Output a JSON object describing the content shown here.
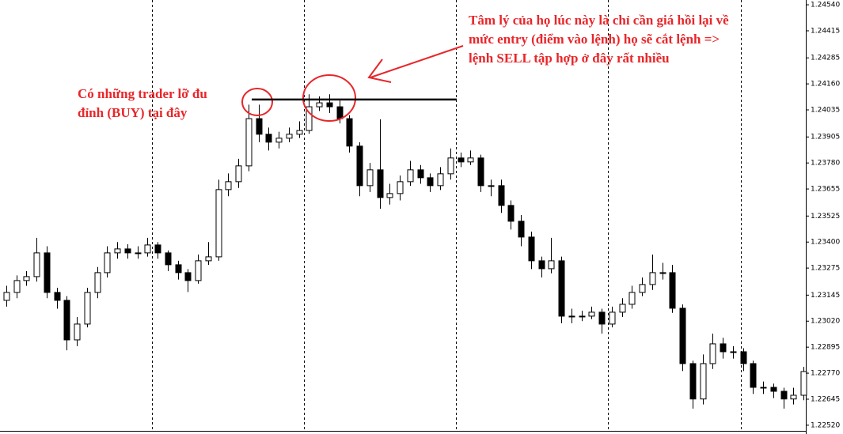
{
  "chart_data": {
    "type": "candlestick",
    "annotations": [
      "Tâm lý của họ lúc này là chỉ cần giá hồi lại về",
      "mức entry (điểm vào lệnh) họ sẽ cắt lệnh =>",
      "lệnh SELL tập hợp ở đây rất nhiều",
      "Có những trader lỡ đu",
      "đỉnh (BUY) tại đây"
    ],
    "level": 1.24085,
    "ylim": [
      1.22493,
      1.24563
    ],
    "yticks": [
      {
        "value": 1.2454,
        "label": "1.24540"
      },
      {
        "value": 1.24415,
        "label": "1.24415"
      },
      {
        "value": 1.24285,
        "label": "1.24285"
      },
      {
        "value": 1.2416,
        "label": "1.24160"
      },
      {
        "value": 1.24035,
        "label": "1.24035"
      },
      {
        "value": 1.23905,
        "label": "1.23905"
      },
      {
        "value": 1.2378,
        "label": "1.23780"
      },
      {
        "value": 1.23655,
        "label": "1.23655"
      },
      {
        "value": 1.23525,
        "label": "1.23525"
      },
      {
        "value": 1.234,
        "label": "1.23400"
      },
      {
        "value": 1.23275,
        "label": "1.23275"
      },
      {
        "value": 1.23145,
        "label": "1.23145"
      },
      {
        "value": 1.2302,
        "label": "1.23020"
      },
      {
        "value": 1.22895,
        "label": "1.22895"
      },
      {
        "value": 1.2277,
        "label": "1.22770"
      },
      {
        "value": 1.22645,
        "label": "1.22645"
      },
      {
        "value": 1.2252,
        "label": "1.22520"
      }
    ],
    "up_color": "#ffffff",
    "down_color": "#000000",
    "candles": [
      [
        1.2312,
        1.2319,
        1.2309,
        1.23158
      ],
      [
        1.23158,
        1.2324,
        1.2313,
        1.23215
      ],
      [
        1.23215,
        1.2326,
        1.2319,
        1.23234
      ],
      [
        1.23234,
        1.2342,
        1.2321,
        1.23348
      ],
      [
        1.23348,
        1.2338,
        1.2313,
        1.23158
      ],
      [
        1.23158,
        1.2318,
        1.2308,
        1.2312
      ],
      [
        1.2312,
        1.2314,
        1.2288,
        1.2293
      ],
      [
        1.2293,
        1.2304,
        1.229,
        1.23006
      ],
      [
        1.23006,
        1.2318,
        1.2299,
        1.23158
      ],
      [
        1.23158,
        1.2328,
        1.2313,
        1.23253
      ],
      [
        1.23253,
        1.2338,
        1.2323,
        1.23348
      ],
      [
        1.23348,
        1.234,
        1.2332,
        1.23367
      ],
      [
        1.23367,
        1.2339,
        1.2332,
        1.23348
      ],
      [
        1.23348,
        1.2338,
        1.2332,
        1.23348
      ],
      [
        1.23348,
        1.2342,
        1.2333,
        1.23386
      ],
      [
        1.23386,
        1.234,
        1.2332,
        1.23348
      ],
      [
        1.23348,
        1.2336,
        1.2326,
        1.23291
      ],
      [
        1.23291,
        1.2331,
        1.2322,
        1.23253
      ],
      [
        1.23253,
        1.2327,
        1.2316,
        1.23215
      ],
      [
        1.23215,
        1.2334,
        1.232,
        1.2331
      ],
      [
        1.2331,
        1.234,
        1.2329,
        1.23329
      ],
      [
        1.23329,
        1.237,
        1.2331,
        1.23652
      ],
      [
        1.23652,
        1.2373,
        1.2362,
        1.2369
      ],
      [
        1.2369,
        1.238,
        1.2366,
        1.23766
      ],
      [
        1.23766,
        1.2406,
        1.2374,
        1.23993
      ],
      [
        1.23993,
        1.2406,
        1.2388,
        1.23918
      ],
      [
        1.23918,
        1.2395,
        1.2384,
        1.2388
      ],
      [
        1.2388,
        1.2393,
        1.2385,
        1.23899
      ],
      [
        1.23899,
        1.2395,
        1.2388,
        1.23918
      ],
      [
        1.23918,
        1.2398,
        1.239,
        1.23936
      ],
      [
        1.23936,
        1.2411,
        1.2392,
        1.2405
      ],
      [
        1.2405,
        1.241,
        1.2403,
        1.24069
      ],
      [
        1.24069,
        1.2411,
        1.2402,
        1.2405
      ],
      [
        1.2405,
        1.2408,
        1.2397,
        1.23993
      ],
      [
        1.23993,
        1.2401,
        1.2383,
        1.23861
      ],
      [
        1.23861,
        1.2388,
        1.2362,
        1.23671
      ],
      [
        1.23671,
        1.2378,
        1.2364,
        1.23747
      ],
      [
        1.23747,
        1.2399,
        1.2356,
        1.23614
      ],
      [
        1.23614,
        1.2368,
        1.2358,
        1.23633
      ],
      [
        1.23633,
        1.2372,
        1.236,
        1.2369
      ],
      [
        1.2369,
        1.2379,
        1.2367,
        1.23747
      ],
      [
        1.23747,
        1.2377,
        1.2368,
        1.23709
      ],
      [
        1.23709,
        1.2373,
        1.2364,
        1.23671
      ],
      [
        1.23671,
        1.2376,
        1.2365,
        1.23728
      ],
      [
        1.23728,
        1.2385,
        1.237,
        1.23804
      ],
      [
        1.23804,
        1.2383,
        1.2376,
        1.23785
      ],
      [
        1.23785,
        1.2384,
        1.2377,
        1.23804
      ],
      [
        1.23804,
        1.2382,
        1.2364,
        1.23671
      ],
      [
        1.23671,
        1.237,
        1.2362,
        1.23671
      ],
      [
        1.23671,
        1.237,
        1.2354,
        1.23576
      ],
      [
        1.23576,
        1.236,
        1.2346,
        1.235
      ],
      [
        1.235,
        1.2353,
        1.2338,
        1.23424
      ],
      [
        1.23424,
        1.2345,
        1.2327,
        1.2331
      ],
      [
        1.2331,
        1.2333,
        1.2323,
        1.23272
      ],
      [
        1.23272,
        1.2342,
        1.2325,
        1.2331
      ],
      [
        1.2331,
        1.2333,
        1.2301,
        1.23044
      ],
      [
        1.23044,
        1.2308,
        1.2301,
        1.23044
      ],
      [
        1.23044,
        1.2307,
        1.2302,
        1.23044
      ],
      [
        1.23044,
        1.2309,
        1.2303,
        1.23063
      ],
      [
        1.23063,
        1.2308,
        1.2296,
        1.23006
      ],
      [
        1.23006,
        1.2309,
        1.2299,
        1.23063
      ],
      [
        1.23063,
        1.2313,
        1.2304,
        1.23101
      ],
      [
        1.23101,
        1.2319,
        1.2308,
        1.23158
      ],
      [
        1.23158,
        1.2323,
        1.2314,
        1.23196
      ],
      [
        1.23196,
        1.2334,
        1.2317,
        1.23253
      ],
      [
        1.23253,
        1.233,
        1.2322,
        1.23253
      ],
      [
        1.23253,
        1.2329,
        1.2306,
        1.23082
      ],
      [
        1.23082,
        1.231,
        1.2278,
        1.22816
      ],
      [
        1.22816,
        1.2283,
        1.226,
        1.22646
      ],
      [
        1.22646,
        1.2286,
        1.2262,
        1.22816
      ],
      [
        1.22816,
        1.2296,
        1.2279,
        1.22911
      ],
      [
        1.22911,
        1.2294,
        1.2284,
        1.22873
      ],
      [
        1.22873,
        1.229,
        1.2284,
        1.22873
      ],
      [
        1.22873,
        1.2289,
        1.2278,
        1.22816
      ],
      [
        1.22816,
        1.2283,
        1.2267,
        1.22702
      ],
      [
        1.22702,
        1.2273,
        1.2267,
        1.22702
      ],
      [
        1.22702,
        1.2272,
        1.2265,
        1.22683
      ],
      [
        1.22683,
        1.227,
        1.226,
        1.22646
      ],
      [
        1.22646,
        1.227,
        1.2262,
        1.22664
      ],
      [
        1.22664,
        1.228,
        1.2264,
        1.22778
      ]
    ]
  }
}
